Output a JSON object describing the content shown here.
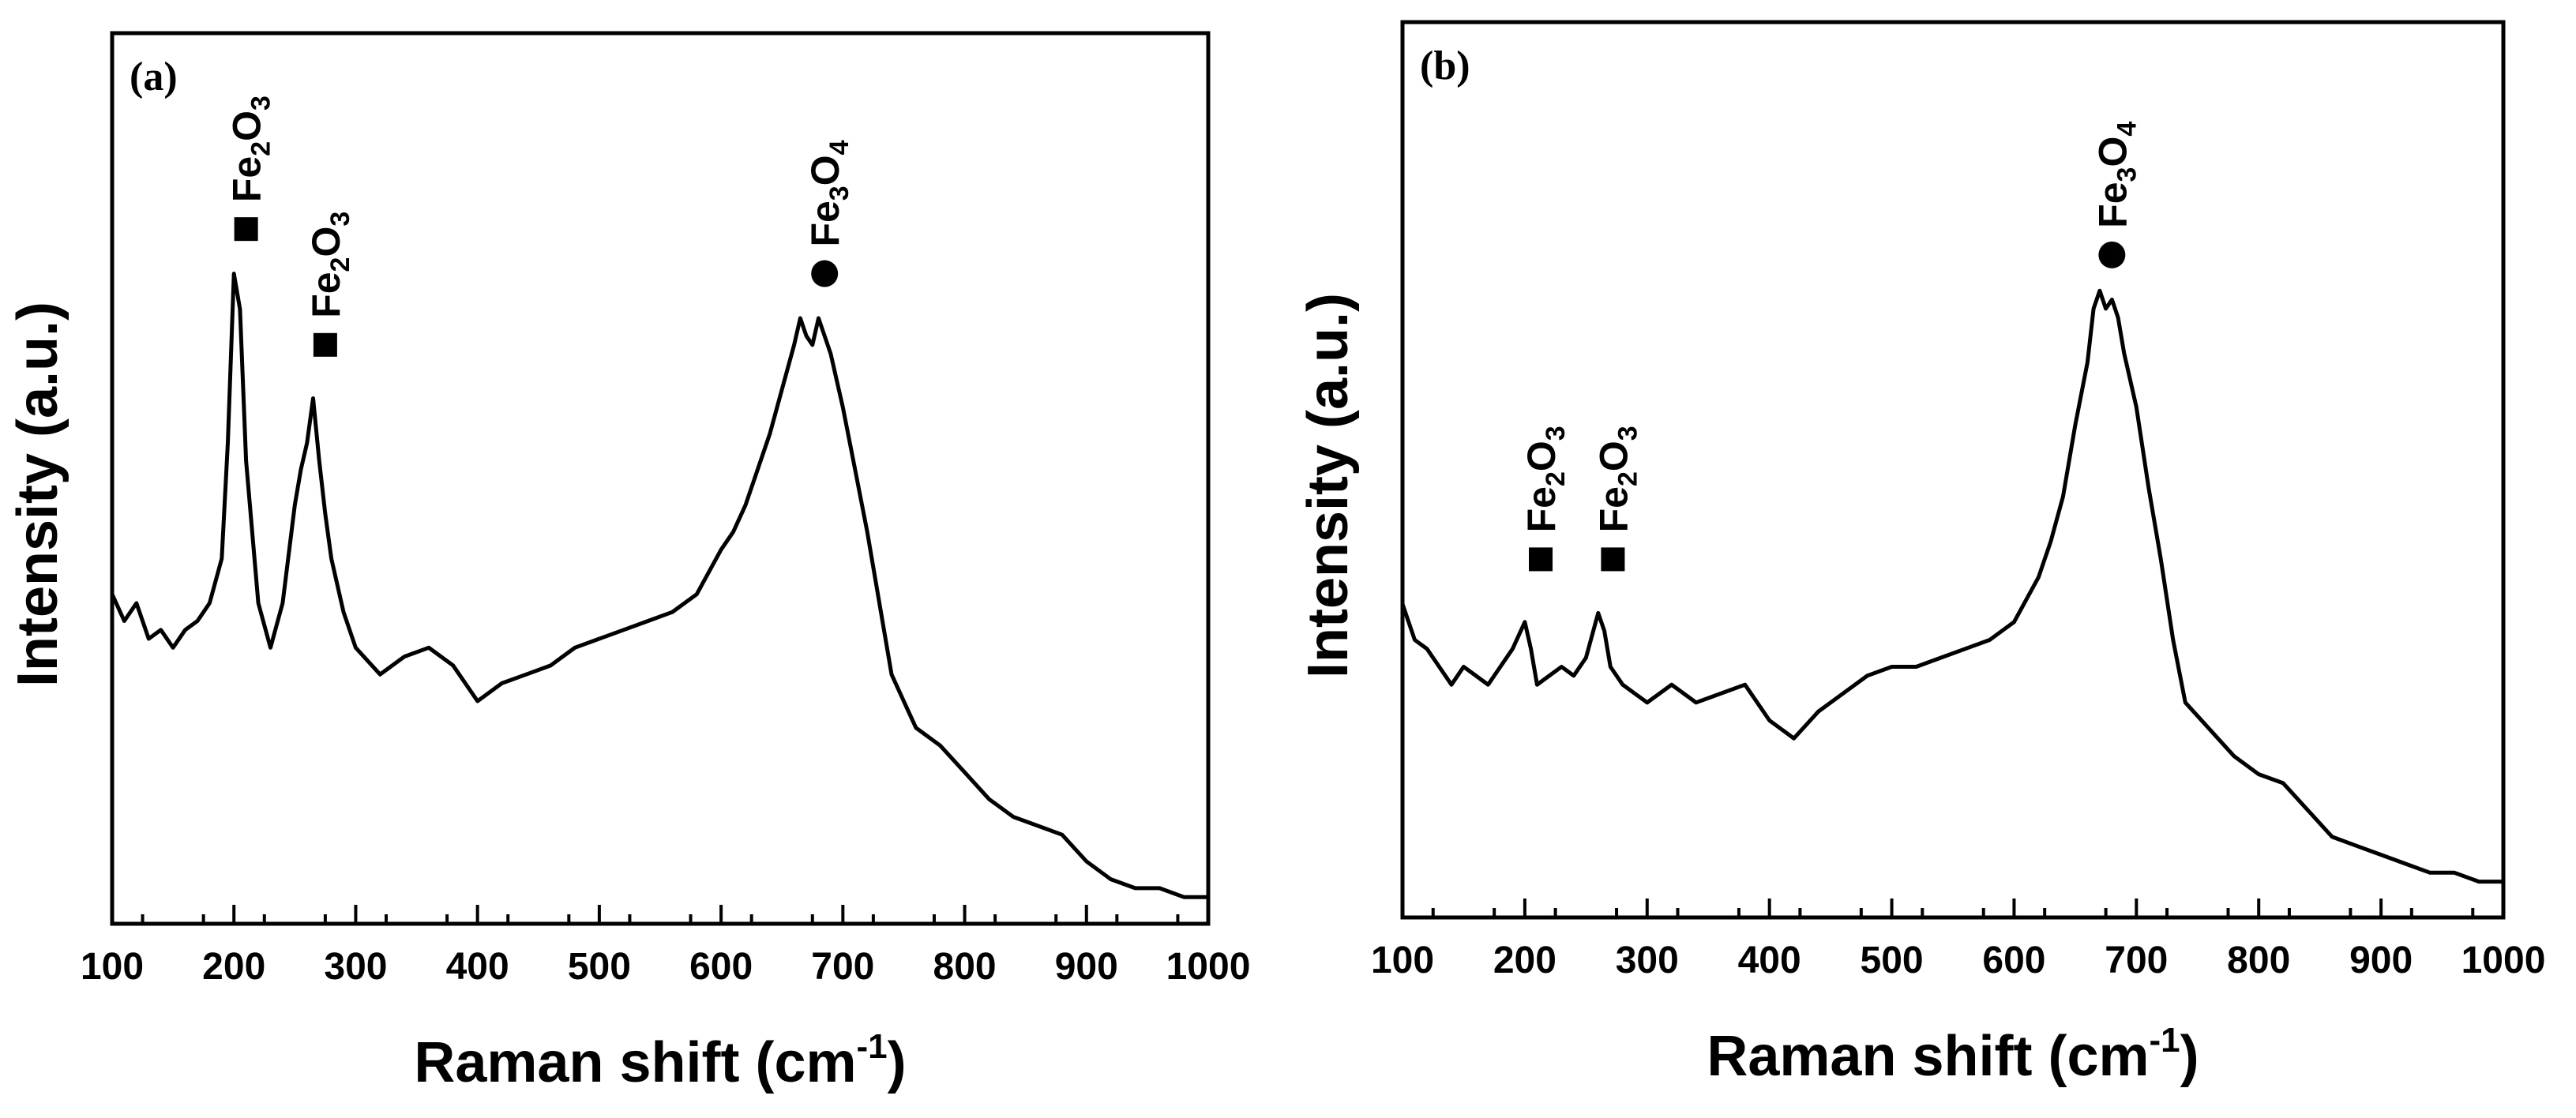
{
  "chart_data": [
    {
      "type": "line",
      "panel_label": "(a)",
      "xlabel": "Raman shift",
      "xlabel_unit_base": "(cm",
      "xlabel_unit_sup": "-1",
      "xlabel_unit_close": ")",
      "ylabel": "Intensity (a.u.)",
      "xlim": [
        100,
        1000
      ],
      "ylim": [
        0,
        100
      ],
      "xticks": [
        "100",
        "200",
        "300",
        "400",
        "500",
        "600",
        "700",
        "800",
        "900",
        "1000"
      ],
      "series": [
        {
          "name": "spectrum",
          "x": [
            100,
            110,
            120,
            130,
            140,
            150,
            160,
            170,
            180,
            190,
            195,
            200,
            205,
            210,
            220,
            230,
            240,
            250,
            255,
            260,
            265,
            270,
            275,
            280,
            290,
            300,
            320,
            340,
            360,
            380,
            400,
            420,
            440,
            460,
            480,
            500,
            520,
            540,
            560,
            580,
            600,
            610,
            620,
            630,
            640,
            650,
            660,
            665,
            670,
            675,
            680,
            685,
            690,
            700,
            710,
            720,
            730,
            740,
            750,
            760,
            780,
            800,
            820,
            840,
            860,
            880,
            900,
            920,
            940,
            960,
            980,
            1000
          ],
          "y": [
            37,
            34,
            36,
            32,
            33,
            31,
            33,
            34,
            36,
            41,
            54,
            73,
            69,
            52,
            36,
            31,
            36,
            47,
            51,
            54,
            59,
            52,
            46,
            41,
            35,
            31,
            28,
            30,
            31,
            29,
            25,
            27,
            28,
            29,
            31,
            32,
            33,
            34,
            35,
            37,
            42,
            44,
            47,
            51,
            55,
            60,
            65,
            68,
            66,
            65,
            68,
            66,
            64,
            58,
            51,
            44,
            36,
            28,
            25,
            22,
            20,
            17,
            14,
            12,
            11,
            10,
            7,
            5,
            4,
            4,
            3,
            3
          ]
        }
      ],
      "annotations": [
        {
          "marker": "square",
          "label": "Fe",
          "sub1": "2",
          "mid": "O",
          "sub2": "3",
          "x": 210,
          "y": 78
        },
        {
          "marker": "square",
          "label": "Fe",
          "sub1": "2",
          "mid": "O",
          "sub2": "3",
          "x": 275,
          "y": 65
        },
        {
          "marker": "circle",
          "label": "Fe",
          "sub1": "3",
          "mid": "O",
          "sub2": "4",
          "x": 685,
          "y": 73
        }
      ]
    },
    {
      "type": "line",
      "panel_label": "(b)",
      "xlabel": "Raman shift",
      "xlabel_unit_base": "(cm",
      "xlabel_unit_sup": "-1",
      "xlabel_unit_close": ")",
      "ylabel": "Intensity (a.u.)",
      "xlim": [
        100,
        1000
      ],
      "ylim": [
        0,
        100
      ],
      "xticks": [
        "100",
        "200",
        "300",
        "400",
        "500",
        "600",
        "700",
        "800",
        "900",
        "1000"
      ],
      "series": [
        {
          "name": "spectrum",
          "x": [
            100,
            110,
            120,
            130,
            140,
            150,
            160,
            170,
            180,
            190,
            200,
            205,
            210,
            220,
            230,
            240,
            250,
            260,
            265,
            270,
            280,
            290,
            300,
            320,
            340,
            360,
            380,
            400,
            410,
            420,
            440,
            460,
            480,
            500,
            520,
            540,
            560,
            580,
            600,
            620,
            630,
            640,
            650,
            660,
            665,
            670,
            675,
            680,
            685,
            690,
            700,
            710,
            720,
            730,
            740,
            760,
            780,
            800,
            820,
            840,
            860,
            880,
            900,
            920,
            940,
            960,
            980,
            1000
          ],
          "y": [
            35,
            31,
            30,
            28,
            26,
            28,
            27,
            26,
            28,
            30,
            33,
            30,
            26,
            27,
            28,
            27,
            29,
            34,
            32,
            28,
            26,
            25,
            24,
            26,
            24,
            25,
            26,
            22,
            21,
            20,
            23,
            25,
            27,
            28,
            28,
            29,
            30,
            31,
            33,
            38,
            42,
            47,
            55,
            62,
            68,
            70,
            68,
            69,
            67,
            63,
            57,
            48,
            40,
            31,
            24,
            21,
            18,
            16,
            15,
            12,
            9,
            8,
            7,
            6,
            5,
            5,
            4,
            4
          ]
        }
      ],
      "annotations": [
        {
          "marker": "square",
          "label": "Fe",
          "sub1": "2",
          "mid": "O",
          "sub2": "3",
          "x": 213,
          "y": 40
        },
        {
          "marker": "square",
          "label": "Fe",
          "sub1": "2",
          "mid": "O",
          "sub2": "3",
          "x": 272,
          "y": 40
        },
        {
          "marker": "circle",
          "label": "Fe",
          "sub1": "3",
          "mid": "O",
          "sub2": "4",
          "x": 680,
          "y": 74
        }
      ]
    }
  ]
}
